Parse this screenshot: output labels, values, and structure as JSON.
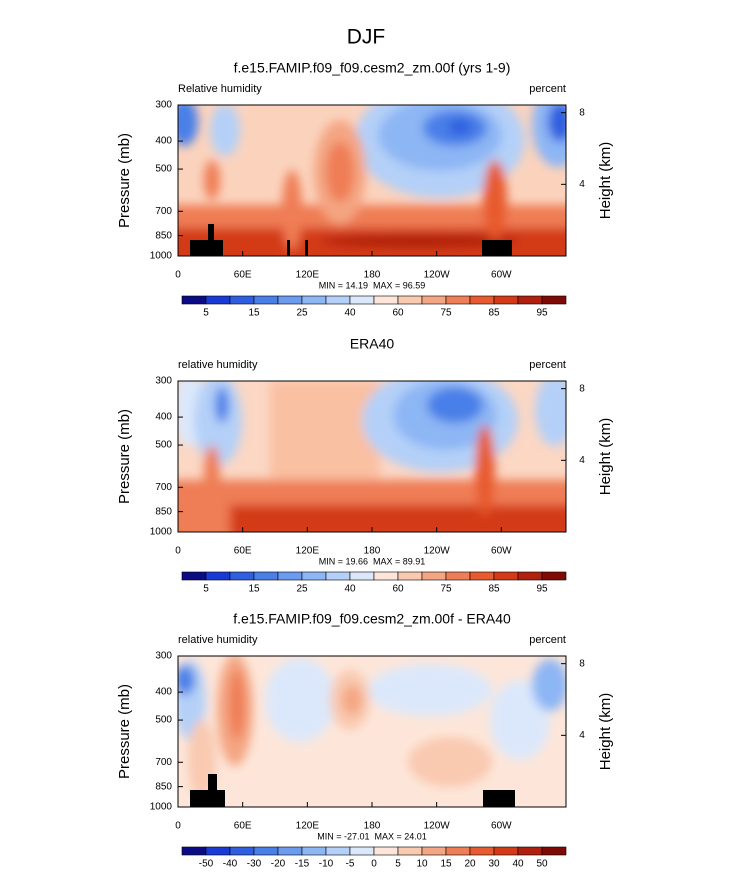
{
  "title": "DJF",
  "chart_data": [
    {
      "type": "contour",
      "title": "f.e15.FAMIP.f09_f09.cesm2_zm.00f (yrs 1-9)",
      "left_label": "Relative humidity",
      "right_label": "percent",
      "ylabel": "Pressure (mb)",
      "y2label": "Height (km)",
      "ylim": [
        1000,
        300
      ],
      "ylog": true,
      "yticks": [
        300,
        400,
        500,
        700,
        850,
        1000
      ],
      "y2ticks": [
        8,
        4
      ],
      "xlim": [
        0,
        360
      ],
      "xticks": [
        0,
        {
          "value": 60,
          "label": "60E"
        },
        {
          "value": 120,
          "label": "120E"
        },
        180,
        {
          "value": 240,
          "label": "120W"
        },
        {
          "value": 300,
          "label": "60W"
        }
      ],
      "stats": "MIN = 14.19  MAX = 96.59",
      "colorbar_labels": [
        5,
        15,
        25,
        40,
        60,
        75,
        85,
        95
      ],
      "colorbar_colors": [
        "#0b0b85",
        "#1a3ad6",
        "#2f5fe0",
        "#4a7fe8",
        "#6a9bef",
        "#8db6f4",
        "#b4d0f8",
        "#dbe8fb",
        "#fde6d9",
        "#f9c9b0",
        "#f4a582",
        "#ef7d55",
        "#e85a2f",
        "#d33a17",
        "#b0200e",
        "#7f0a05"
      ]
    },
    {
      "type": "contour",
      "title": "ERA40",
      "left_label": "relative humidity",
      "right_label": "percent",
      "ylabel": "Pressure (mb)",
      "y2label": "Height (km)",
      "ylim": [
        1000,
        300
      ],
      "ylog": true,
      "yticks": [
        300,
        400,
        500,
        700,
        850,
        1000
      ],
      "y2ticks": [
        8,
        4
      ],
      "xlim": [
        0,
        360
      ],
      "xticks": [
        0,
        {
          "value": 60,
          "label": "60E"
        },
        {
          "value": 120,
          "label": "120E"
        },
        180,
        {
          "value": 240,
          "label": "120W"
        },
        {
          "value": 300,
          "label": "60W"
        }
      ],
      "stats": "MIN = 19.66  MAX = 89.91",
      "colorbar_labels": [
        5,
        15,
        25,
        40,
        60,
        75,
        85,
        95
      ],
      "colorbar_colors": [
        "#0b0b85",
        "#1a3ad6",
        "#2f5fe0",
        "#4a7fe8",
        "#6a9bef",
        "#8db6f4",
        "#b4d0f8",
        "#dbe8fb",
        "#fde6d9",
        "#f9c9b0",
        "#f4a582",
        "#ef7d55",
        "#e85a2f",
        "#d33a17",
        "#b0200e",
        "#7f0a05"
      ]
    },
    {
      "type": "contour",
      "title": "f.e15.FAMIP.f09_f09.cesm2_zm.00f - ERA40",
      "left_label": "relative humidity",
      "right_label": "percent",
      "ylabel": "Pressure (mb)",
      "y2label": "Height (km)",
      "ylim": [
        1000,
        300
      ],
      "ylog": true,
      "yticks": [
        300,
        400,
        500,
        700,
        850,
        1000
      ],
      "y2ticks": [
        8,
        4
      ],
      "xlim": [
        0,
        360
      ],
      "xticks": [
        0,
        {
          "value": 60,
          "label": "60E"
        },
        {
          "value": 120,
          "label": "120E"
        },
        180,
        {
          "value": 240,
          "label": "120W"
        },
        {
          "value": 300,
          "label": "60W"
        }
      ],
      "stats": "MIN = -27.01  MAX = 24.01",
      "colorbar_labels": [
        -50,
        -40,
        -30,
        -20,
        -15,
        -10,
        -5,
        0,
        5,
        10,
        15,
        20,
        30,
        40,
        50
      ],
      "colorbar_colors": [
        "#0b0b85",
        "#1a3ad6",
        "#2f5fe0",
        "#4a7fe8",
        "#6a9bef",
        "#8db6f4",
        "#b4d0f8",
        "#dbe8fb",
        "#fde6d9",
        "#f9c9b0",
        "#f4a582",
        "#ef7d55",
        "#e85a2f",
        "#d33a17",
        "#b0200e",
        "#7f0a05"
      ]
    }
  ]
}
